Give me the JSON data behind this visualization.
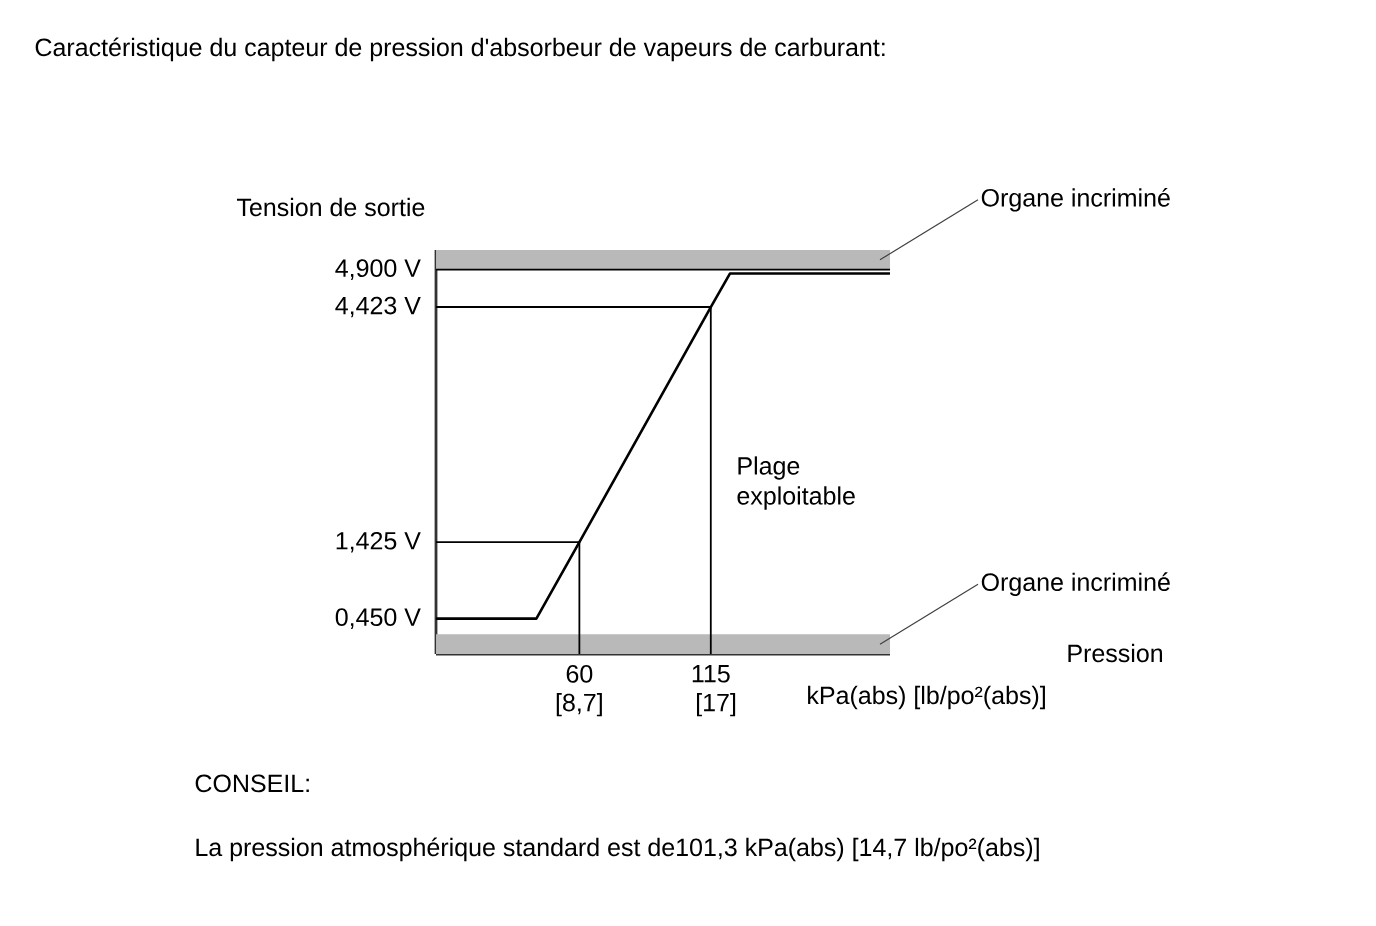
{
  "chart_data": {
    "type": "line",
    "title": "Caractéristique du capteur de pression d'absorbeur de vapeurs de carburant:",
    "ylabel": "Tension de sortie",
    "xlabel": "kPa(abs) [lb/po²(abs)]",
    "x": [
      0,
      42,
      60,
      115,
      123,
      190
    ],
    "values": [
      0.45,
      0.45,
      1.425,
      4.423,
      4.85,
      4.85
    ],
    "color": "#000000",
    "xlim": [
      0,
      190
    ],
    "xticks": [
      {
        "value": 60,
        "label": "60"
      },
      {
        "value": 115,
        "label": "115"
      }
    ],
    "x2lim": [
      0,
      27.56
    ],
    "x2ticks": [
      {
        "value": 8.7,
        "label": "[8,7]"
      },
      {
        "value": 17,
        "label": "[17]"
      }
    ],
    "ylim": [
      0,
      5.15
    ],
    "yticks": [
      {
        "value": 0.45,
        "label": "0,450 V"
      },
      {
        "value": 1.425,
        "label": "1,425 V"
      },
      {
        "value": 4.423,
        "label": "4,423 V"
      },
      {
        "value": 4.9,
        "label": "4,900 V"
      }
    ],
    "bands": [
      {
        "axis": "y",
        "from": 4.9,
        "to": 5.15,
        "label": "Organe incriminé",
        "color": "#b9b9b9"
      },
      {
        "axis": "y",
        "from": 0,
        "to": 0.25,
        "label": "Organe incriminé",
        "color": "#b9b9b9"
      }
    ],
    "ref_lines": [
      {
        "axis": "x",
        "value": 60,
        "color": "#000000"
      },
      {
        "axis": "x",
        "value": 115,
        "color": "#000000"
      },
      {
        "axis": "y",
        "value": 1.425,
        "color": "#000000"
      },
      {
        "axis": "y",
        "value": 4.423,
        "color": "#000000"
      },
      {
        "axis": "y",
        "value": 4.9,
        "color": "#000000"
      }
    ],
    "annotations": [
      "Plage exploitable",
      "Pression",
      "CONSEIL:",
      "La pression atmosphérique standard est de101,3 kPa(abs) [14,7 lb/po²(abs)]"
    ]
  }
}
